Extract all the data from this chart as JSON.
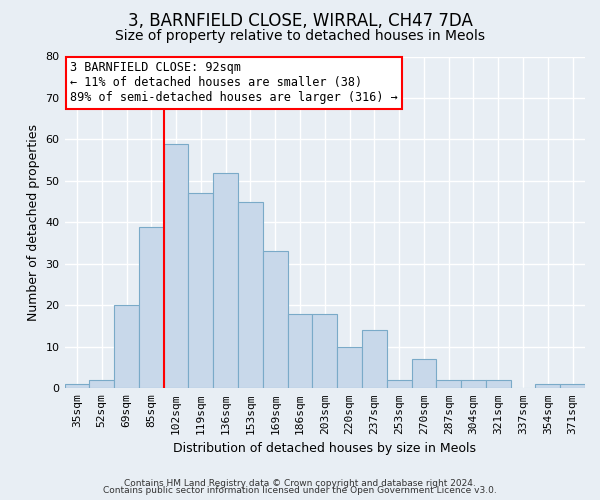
{
  "title": "3, BARNFIELD CLOSE, WIRRAL, CH47 7DA",
  "subtitle": "Size of property relative to detached houses in Meols",
  "xlabel": "Distribution of detached houses by size in Meols",
  "ylabel": "Number of detached properties",
  "categories": [
    "35sqm",
    "52sqm",
    "69sqm",
    "85sqm",
    "102sqm",
    "119sqm",
    "136sqm",
    "153sqm",
    "169sqm",
    "186sqm",
    "203sqm",
    "220sqm",
    "237sqm",
    "253sqm",
    "270sqm",
    "287sqm",
    "304sqm",
    "321sqm",
    "337sqm",
    "354sqm",
    "371sqm"
  ],
  "values": [
    1,
    2,
    20,
    39,
    59,
    47,
    52,
    45,
    33,
    18,
    18,
    10,
    14,
    2,
    7,
    2,
    2,
    2,
    0,
    1,
    1
  ],
  "bar_color": "#c8d8ea",
  "bar_edgecolor": "#7aaac8",
  "annotation_line1": "3 BARNFIELD CLOSE: 92sqm",
  "annotation_line2": "← 11% of detached houses are smaller (38)",
  "annotation_line3": "89% of semi-detached houses are larger (316) →",
  "annotation_box_color": "white",
  "annotation_box_edgecolor": "red",
  "footer1": "Contains HM Land Registry data © Crown copyright and database right 2024.",
  "footer2": "Contains public sector information licensed under the Open Government Licence v3.0.",
  "ylim": [
    0,
    80
  ],
  "yticks": [
    0,
    10,
    20,
    30,
    40,
    50,
    60,
    70,
    80
  ],
  "background_color": "#e8eef4",
  "grid_color": "white",
  "title_fontsize": 12,
  "subtitle_fontsize": 10,
  "ylabel_fontsize": 9,
  "xlabel_fontsize": 9,
  "tick_fontsize": 8,
  "footer_fontsize": 6.5,
  "ann_fontsize": 8.5
}
